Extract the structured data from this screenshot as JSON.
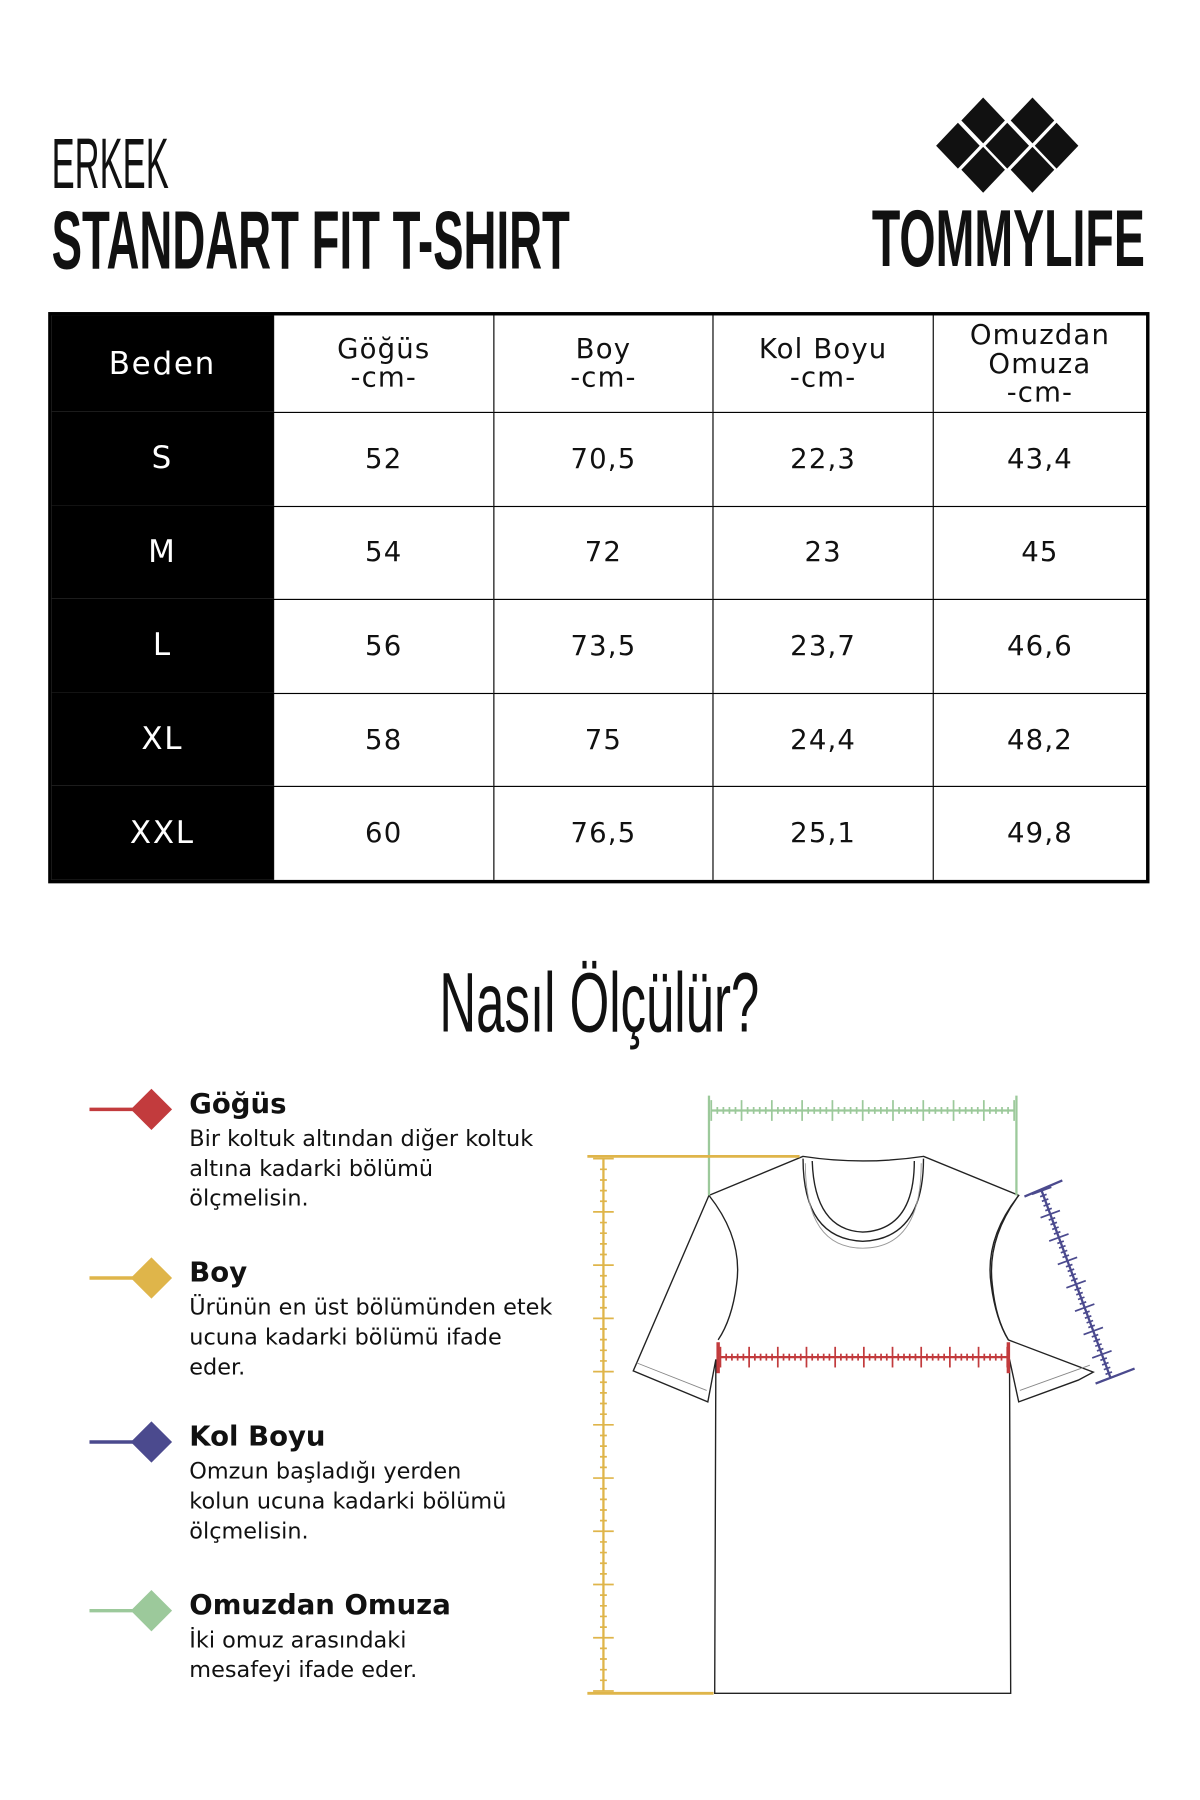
{
  "header": {
    "subtitle": "ERKEK",
    "title": "STANDART FIT T-SHIRT",
    "brand": "TOMMYLIFE"
  },
  "table": {
    "columns": [
      {
        "name": "Beden",
        "unit": ""
      },
      {
        "name": "Göğüs",
        "unit": "-cm-"
      },
      {
        "name": "Boy",
        "unit": "-cm-"
      },
      {
        "name": "Kol Boyu",
        "unit": "-cm-"
      },
      {
        "name": "Omuzdan Omuza",
        "unit": "-cm-"
      }
    ],
    "rows": [
      [
        "S",
        "52",
        "70,5",
        "22,3",
        "43,4"
      ],
      [
        "M",
        "54",
        "72",
        "23",
        "45"
      ],
      [
        "L",
        "56",
        "73,5",
        "23,7",
        "46,6"
      ],
      [
        "XL",
        "58",
        "75",
        "24,4",
        "48,2"
      ],
      [
        "XXL",
        "60",
        "76,5",
        "25,1",
        "49,8"
      ]
    ]
  },
  "guide": {
    "title": "Nasıl Ölçülür?",
    "items": [
      {
        "title": "Göğüs",
        "text": "Bir koltuk altından diğer koltuk altına kadarki bölümü ölçmelisin.",
        "color": "#c23b3d"
      },
      {
        "title": "Boy",
        "text": "Ürünün en üst bölümünden etek ucuna kadarki bölümü ifade eder.",
        "color": "#dfb54a"
      },
      {
        "title": "Kol Boyu",
        "text": "Omzun başladığı yerden kolun ucuna kadarki bölümü ölçmelisin.",
        "color": "#4b4a8e"
      },
      {
        "title": "Omuzdan Omuza",
        "text": "İki omuz arasındaki mesafeyi ifade eder.",
        "color": "#9cc99b"
      }
    ]
  }
}
